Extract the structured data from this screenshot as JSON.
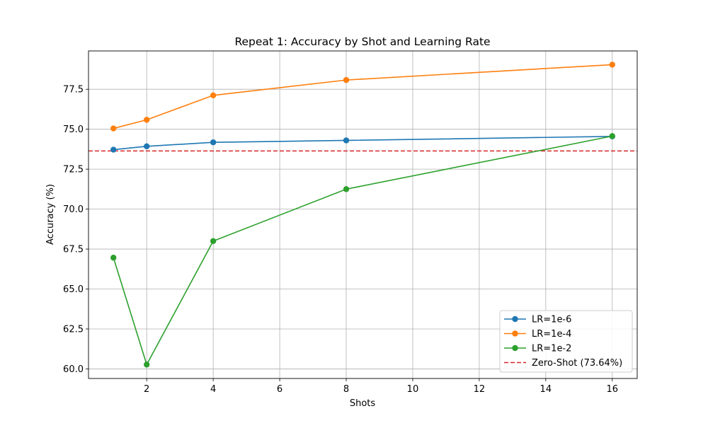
{
  "chart_data": {
    "type": "line",
    "title": "Repeat 1: Accuracy by Shot and Learning Rate",
    "xlabel": "Shots",
    "ylabel": "Accuracy (%)",
    "xlim": [
      0.25,
      16.75
    ],
    "ylim": [
      59.4,
      79.9
    ],
    "xticks": [
      2,
      4,
      6,
      8,
      10,
      12,
      14,
      16
    ],
    "yticks": [
      60.0,
      62.5,
      65.0,
      67.5,
      70.0,
      72.5,
      75.0,
      77.5
    ],
    "grid": true,
    "legend_position": "lower-right",
    "x": [
      1,
      2,
      4,
      8,
      16
    ],
    "series": [
      {
        "name": "LR=1e-6",
        "color": "#1f77b4",
        "marker": "circle",
        "values": [
          73.72,
          73.93,
          74.18,
          74.3,
          74.55
        ]
      },
      {
        "name": "LR=1e-4",
        "color": "#ff7f0e",
        "marker": "circle",
        "values": [
          75.05,
          75.59,
          77.12,
          78.08,
          79.04
        ]
      },
      {
        "name": "LR=1e-2",
        "color": "#2ca02c",
        "marker": "circle",
        "values": [
          66.96,
          60.27,
          68.0,
          71.25,
          74.57
        ]
      }
    ],
    "reference_lines": [
      {
        "name": "Zero-Shot (73.64%)",
        "y": 73.64,
        "color": "#d62728",
        "style": "dashed"
      }
    ]
  }
}
